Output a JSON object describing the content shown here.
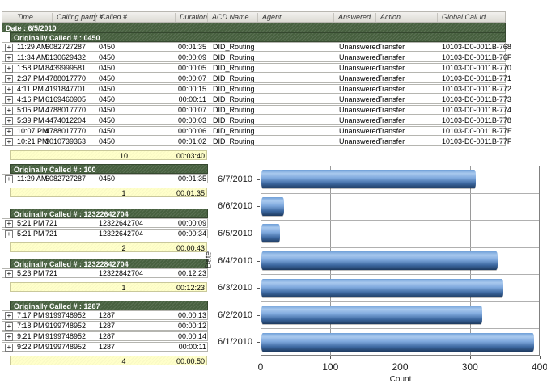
{
  "table": {
    "columns": [
      "Time",
      "Calling party #",
      "Called #",
      "Duration",
      "ACD Name",
      "Agent",
      "Answered",
      "Action",
      "Global Call Id"
    ],
    "date_band": "Date : 6/5/2010",
    "expand_glyph": "+",
    "groups": [
      {
        "header": "Originally Called # : 0450",
        "full_width": true,
        "rows": [
          {
            "time": "11:29 AM",
            "calling": "6082727287",
            "called": "0450",
            "duration": "00:01:35",
            "acd": "DID_Routing",
            "agent": "",
            "answered": "Unanswered",
            "action": "Transfer",
            "global_id": "10103-D0-0011B-768"
          },
          {
            "time": "11:34 AM",
            "calling": "6130629432",
            "called": "0450",
            "duration": "00:00:09",
            "acd": "DID_Routing",
            "agent": "",
            "answered": "Unanswered",
            "action": "Transfer",
            "global_id": "10103-D0-0011B-76F"
          },
          {
            "time": "1:58 PM",
            "calling": "8439999581",
            "called": "0450",
            "duration": "00:00:05",
            "acd": "DID_Routing",
            "agent": "",
            "answered": "Unanswered",
            "action": "Transfer",
            "global_id": "10103-D0-0011B-770"
          },
          {
            "time": "2:37 PM",
            "calling": "4788017770",
            "called": "0450",
            "duration": "00:00:07",
            "acd": "DID_Routing",
            "agent": "",
            "answered": "Unanswered",
            "action": "Transfer",
            "global_id": "10103-D0-0011B-771"
          },
          {
            "time": "4:11 PM",
            "calling": "4191847701",
            "called": "0450",
            "duration": "00:00:15",
            "acd": "DID_Routing",
            "agent": "",
            "answered": "Unanswered",
            "action": "Transfer",
            "global_id": "10103-D0-0011B-772"
          },
          {
            "time": "4:16 PM",
            "calling": "6169460905",
            "called": "0450",
            "duration": "00:00:11",
            "acd": "DID_Routing",
            "agent": "",
            "answered": "Unanswered",
            "action": "Transfer",
            "global_id": "10103-D0-0011B-773"
          },
          {
            "time": "5:05 PM",
            "calling": "4788017770",
            "called": "0450",
            "duration": "00:00:07",
            "acd": "DID_Routing",
            "agent": "",
            "answered": "Unanswered",
            "action": "Transfer",
            "global_id": "10103-D0-0011B-774"
          },
          {
            "time": "5:39 PM",
            "calling": "4474012204",
            "called": "0450",
            "duration": "00:00:03",
            "acd": "DID_Routing",
            "agent": "",
            "answered": "Unanswered",
            "action": "Transfer",
            "global_id": "10103-D0-0011B-778"
          },
          {
            "time": "10:07 PM",
            "calling": "4788017770",
            "called": "0450",
            "duration": "00:00:06",
            "acd": "DID_Routing",
            "agent": "",
            "answered": "Unanswered",
            "action": "Transfer",
            "global_id": "10103-D0-0011B-77E"
          },
          {
            "time": "10:21 PM",
            "calling": "3010739363",
            "called": "0450",
            "duration": "00:01:02",
            "acd": "DID_Routing",
            "agent": "",
            "answered": "Unanswered",
            "action": "Transfer",
            "global_id": "10103-D0-0011B-77F"
          }
        ],
        "subtotal": {
          "count": "10",
          "duration": "00:03:40"
        }
      },
      {
        "header": "Originally Called # : 100",
        "full_width": false,
        "rows": [
          {
            "time": "11:29 AM",
            "calling": "6082727287",
            "called": "0450",
            "duration": "00:01:35"
          }
        ],
        "subtotal": {
          "count": "1",
          "duration": "00:01:35"
        }
      },
      {
        "header": "Originally Called # : 12322642704",
        "full_width": false,
        "rows": [
          {
            "time": "5:21 PM",
            "calling": "721",
            "called": "12322642704",
            "duration": "00:00:09"
          },
          {
            "time": "5:21 PM",
            "calling": "721",
            "called": "12322642704",
            "duration": "00:00:34"
          }
        ],
        "subtotal": {
          "count": "2",
          "duration": "00:00:43"
        }
      },
      {
        "header": "Originally Called # : 12322842704",
        "full_width": false,
        "rows": [
          {
            "time": "5:23 PM",
            "calling": "721",
            "called": "12322842704",
            "duration": "00:12:23"
          }
        ],
        "subtotal": {
          "count": "1",
          "duration": "00:12:23"
        }
      },
      {
        "header": "Originally Called # : 1287",
        "full_width": false,
        "rows": [
          {
            "time": "7:17 PM",
            "calling": "9199748952",
            "called": "1287",
            "duration": "00:00:13"
          },
          {
            "time": "7:18 PM",
            "calling": "9199748952",
            "called": "1287",
            "duration": "00:00:12"
          },
          {
            "time": "9:21 PM",
            "calling": "9199748952",
            "called": "1287",
            "duration": "00:00:14"
          },
          {
            "time": "9:22 PM",
            "calling": "9199748952",
            "called": "1287",
            "duration": "00:00:11"
          }
        ],
        "subtotal": {
          "count": "4",
          "duration": "00:00:50"
        }
      }
    ]
  },
  "chart_data": {
    "type": "bar",
    "orientation": "horizontal",
    "title": "",
    "categories": [
      "6/7/2010",
      "6/6/2010",
      "6/5/2010",
      "6/4/2010",
      "6/3/2010",
      "6/2/2010",
      "6/1/2010"
    ],
    "values": [
      307,
      32,
      27,
      339,
      347,
      317,
      391
    ],
    "xlabel": "Count",
    "ylabel": "Date",
    "xlim": [
      0,
      400
    ],
    "xticks": [
      0,
      100,
      200,
      300,
      400
    ],
    "grid": "on",
    "legend": "none"
  },
  "colors": {
    "group_band_green": "#47603f",
    "subtotal_yellow": "#ffffca",
    "bar_blue_light": "#a9c9ee",
    "bar_blue_dark": "#1e3a5f",
    "header_gray": "#e5e3dd"
  }
}
